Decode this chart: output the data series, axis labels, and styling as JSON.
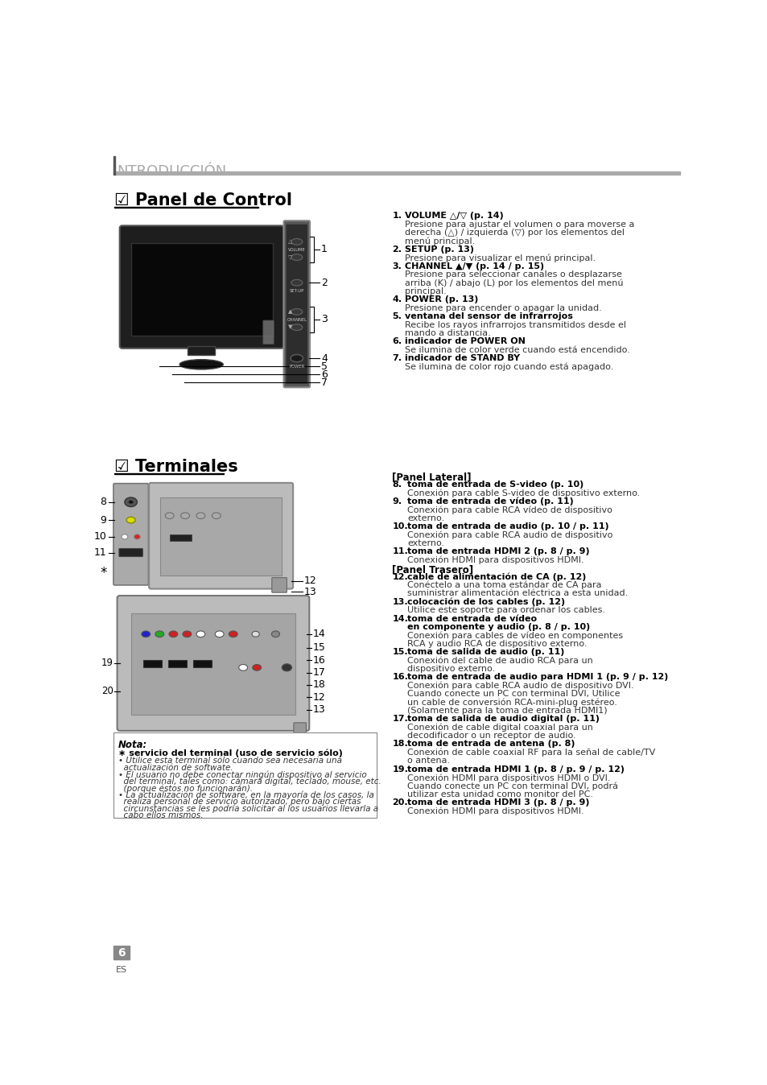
{
  "bg_color": "#ffffff",
  "header_text": "NTRODUCCIÓN",
  "section1_title": "☑ Panel de Control",
  "section2_title": "☑ Terminales",
  "right_col_text": [
    [
      "1.",
      "VOLUME △/▽ (p. 14)",
      true
    ],
    [
      "",
      "Presione para ajustar el volumen o para moverse a",
      false
    ],
    [
      "",
      "derecha (△) / izquierda (▽) por los elementos del",
      false
    ],
    [
      "",
      "menú principal.",
      false
    ],
    [
      "2.",
      "SETUP (p. 13)",
      true
    ],
    [
      "",
      "Presione para visualizar el menú principal.",
      false
    ],
    [
      "3.",
      "CHANNEL ▲/▼ (p. 14 / p. 15)",
      true
    ],
    [
      "",
      "Presione para seleccionar canales o desplazarse",
      false
    ],
    [
      "",
      "arriba (K) / abajo (L) por los elementos del menú",
      false
    ],
    [
      "",
      "principal.",
      false
    ],
    [
      "4.",
      "POWER (p. 13)",
      true
    ],
    [
      "",
      "Presione para encender o apagar la unidad.",
      false
    ],
    [
      "5.",
      "ventana del sensor de infrarrojos",
      true
    ],
    [
      "",
      "Recibe los rayos infrarrojos transmitidos desde el",
      false
    ],
    [
      "",
      "mando a distancia.",
      false
    ],
    [
      "6.",
      "indicador de POWER ON",
      true
    ],
    [
      "",
      "Se ilumina de color verde cuando está encendido.",
      false
    ],
    [
      "7.",
      "indicador de STAND BY",
      true
    ],
    [
      "",
      "Se ilumina de color rojo cuando está apagado.",
      false
    ]
  ],
  "right_col2_text": [
    [
      "[Panel Lateral]",
      "",
      true
    ],
    [
      "8.",
      "toma de entrada de S-video (p. 10)",
      true
    ],
    [
      "",
      "Conexión para cable S-video de dispositivo externo.",
      false
    ],
    [
      "9.",
      "toma de entrada de vídeo (p. 11)",
      true
    ],
    [
      "",
      "Conexión para cable RCA vídeo de dispositivo",
      false
    ],
    [
      "",
      "externo.",
      false
    ],
    [
      "10.",
      "toma de entrada de audio (p. 10 / p. 11)",
      true
    ],
    [
      "",
      "Conexión para cable RCA audio de dispositivo",
      false
    ],
    [
      "",
      "externo.",
      false
    ],
    [
      "11.",
      "toma de entrada HDMI 2 (p. 8 / p. 9)",
      true
    ],
    [
      "",
      "Conexión HDMI para dispositivos HDMI.",
      false
    ],
    [
      "[Panel Trasero]",
      "",
      true
    ],
    [
      "12.",
      "cable de alimentación de CA (p. 12)",
      true
    ],
    [
      "",
      "Conéctelo a una toma estándar de CA para",
      false
    ],
    [
      "",
      "suministrar alimentación eléctrica a esta unidad.",
      false
    ],
    [
      "13.",
      "colocación de los cables (p. 12)",
      true
    ],
    [
      "",
      "Utilice este soporte para ordenar los cables.",
      false
    ],
    [
      "14.",
      "toma de entrada de vídeo",
      true
    ],
    [
      "",
      "en componente y audio (p. 8 / p. 10)",
      true
    ],
    [
      "",
      "Conexión para cables de vídeo en componentes",
      false
    ],
    [
      "",
      "RCA y audio RCA de dispositivo externo.",
      false
    ],
    [
      "15.",
      "toma de salida de audio (p. 11)",
      true
    ],
    [
      "",
      "Conexión del cable de audio RCA para un",
      false
    ],
    [
      "",
      "dispositivo externo.",
      false
    ],
    [
      "16.",
      "toma de entrada de audio para HDMI 1 (p. 9 / p. 12)",
      true
    ],
    [
      "",
      "Conexión para cable RCA audio de dispositivo DVI.",
      false
    ],
    [
      "",
      "Cuando conecte un PC con terminal DVI, Utilice",
      false
    ],
    [
      "",
      "un cable de conversión RCA-mini-plug estéreo.",
      false
    ],
    [
      "",
      "(Solamente para la toma de entrada HDMI1)",
      false
    ],
    [
      "17.",
      "toma de salida de audio digital (p. 11)",
      true
    ],
    [
      "",
      "Conexión de cable digital coaxial para un",
      false
    ],
    [
      "",
      "decodificador o un receptor de audio.",
      false
    ],
    [
      "18.",
      "toma de entrada de antena (p. 8)",
      true
    ],
    [
      "",
      "Conexión de cable coaxial RF para la señal de cable/TV",
      false
    ],
    [
      "",
      "o antena.",
      false
    ],
    [
      "19.",
      "toma de entrada HDMI 1 (p. 8 / p. 9 / p. 12)",
      true
    ],
    [
      "",
      "Conexión HDMI para dispositivos HDMI o DVI.",
      false
    ],
    [
      "",
      "Cuando conecte un PC con terminal DVI, podrá",
      false
    ],
    [
      "",
      "utilizar esta unidad como monitor del PC.",
      false
    ],
    [
      "20.",
      "toma de entrada HDMI 3 (p. 8 / p. 9)",
      true
    ],
    [
      "",
      "Conexión HDMI para dispositivos HDMI.",
      false
    ]
  ],
  "nota_title": "Nota:",
  "nota_star": "∗ servicio del terminal (uso de servicio sólo)",
  "nota_bullets": [
    "Utilice esta terminal sólo cuando sea necesaria una actualización de softwate.",
    "El usuario no debe conectar ningún dispositivo al servicio del terminal, tales como: cámara digital, teclado, mouse, etc. (porque éstos no funcionarán).",
    "La actualización de software, en la mayoría de los casos, la realiza personal de servicio autorizado, pero bajo ciertas circunstancias se les podría solicitar al los usuarios llevarla a cabo ellos mismos."
  ],
  "page_num": "6",
  "page_lang": "ES"
}
